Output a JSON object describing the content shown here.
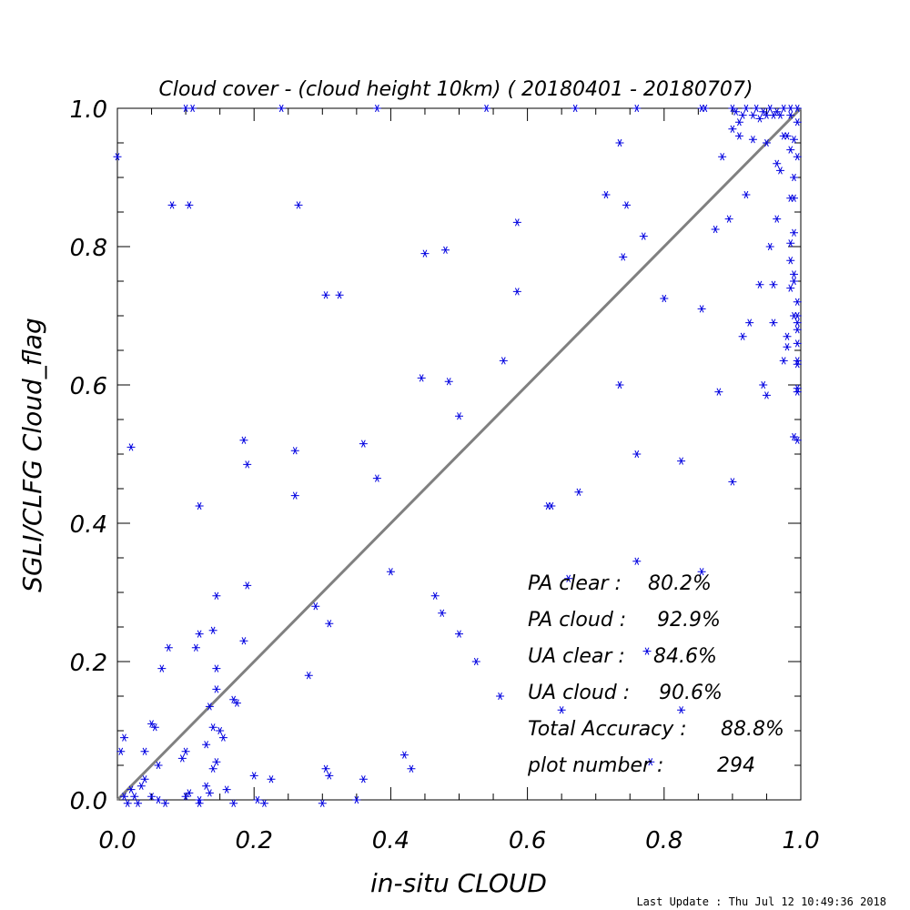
{
  "chart_data": {
    "type": "scatter",
    "title": "Cloud cover - (cloud height 10km) ( 20180401 - 20180707)",
    "xlabel": "in-situ CLOUD",
    "ylabel": "SGLI/CLFG Cloud_flag",
    "xlim": [
      0.0,
      1.0
    ],
    "ylim": [
      0.0,
      1.0
    ],
    "xticks": [
      "0.0",
      "0.2",
      "0.4",
      "0.6",
      "0.8",
      "1.0"
    ],
    "yticks": [
      "0.0",
      "0.2",
      "0.4",
      "0.6",
      "0.8",
      "1.0"
    ],
    "reference_line": "1:1",
    "marker": "asterisk",
    "point_color": "#0000e0",
    "line_color": "#808080",
    "points": [
      [
        0.0,
        0.93
      ],
      [
        0.02,
        0.51
      ],
      [
        0.08,
        0.86
      ],
      [
        0.105,
        0.86
      ],
      [
        0.265,
        0.86
      ],
      [
        0.1,
        1.0
      ],
      [
        0.11,
        1.0
      ],
      [
        0.24,
        1.0
      ],
      [
        0.38,
        1.0
      ],
      [
        0.54,
        1.0
      ],
      [
        0.67,
        1.0
      ],
      [
        0.76,
        1.0
      ],
      [
        0.305,
        0.73
      ],
      [
        0.325,
        0.73
      ],
      [
        0.45,
        0.79
      ],
      [
        0.48,
        0.795
      ],
      [
        0.585,
        0.835
      ],
      [
        0.585,
        0.735
      ],
      [
        0.565,
        0.635
      ],
      [
        0.445,
        0.61
      ],
      [
        0.485,
        0.605
      ],
      [
        0.5,
        0.555
      ],
      [
        0.185,
        0.52
      ],
      [
        0.19,
        0.485
      ],
      [
        0.26,
        0.505
      ],
      [
        0.36,
        0.515
      ],
      [
        0.38,
        0.465
      ],
      [
        0.26,
        0.44
      ],
      [
        0.12,
        0.425
      ],
      [
        0.63,
        0.425
      ],
      [
        0.635,
        0.425
      ],
      [
        0.675,
        0.445
      ],
      [
        0.715,
        0.875
      ],
      [
        0.735,
        0.95
      ],
      [
        0.745,
        0.86
      ],
      [
        0.77,
        0.815
      ],
      [
        0.74,
        0.785
      ],
      [
        0.735,
        0.6
      ],
      [
        0.76,
        0.5
      ],
      [
        0.8,
        0.725
      ],
      [
        0.825,
        0.49
      ],
      [
        0.855,
        0.71
      ],
      [
        0.875,
        0.825
      ],
      [
        0.88,
        0.59
      ],
      [
        0.885,
        0.93
      ],
      [
        0.895,
        0.84
      ],
      [
        0.9,
        0.46
      ],
      [
        0.91,
        0.98
      ],
      [
        0.915,
        0.67
      ],
      [
        0.92,
        0.875
      ],
      [
        0.925,
        0.69
      ],
      [
        0.94,
        0.745
      ],
      [
        0.945,
        0.6
      ],
      [
        0.95,
        0.585
      ],
      [
        0.955,
        0.8
      ],
      [
        0.96,
        0.69
      ],
      [
        0.96,
        0.745
      ],
      [
        0.965,
        0.92
      ],
      [
        0.965,
        0.84
      ],
      [
        0.97,
        0.91
      ],
      [
        0.975,
        0.96
      ],
      [
        0.975,
        0.635
      ],
      [
        0.98,
        0.655
      ],
      [
        0.98,
        0.67
      ],
      [
        0.985,
        0.74
      ],
      [
        0.985,
        0.87
      ],
      [
        0.99,
        0.955
      ],
      [
        0.99,
        0.82
      ],
      [
        0.99,
        0.7
      ],
      [
        0.995,
        0.635
      ],
      [
        0.995,
        0.52
      ],
      [
        0.995,
        0.59
      ],
      [
        0.995,
        0.93
      ],
      [
        0.995,
        0.98
      ],
      [
        0.985,
        0.99
      ],
      [
        0.97,
        0.99
      ],
      [
        0.96,
        0.99
      ],
      [
        0.95,
        0.99
      ],
      [
        0.94,
        0.985
      ],
      [
        0.93,
        0.99
      ],
      [
        0.99,
        0.87
      ],
      [
        0.99,
        0.9
      ],
      [
        0.995,
        0.72
      ],
      [
        0.985,
        0.78
      ],
      [
        0.99,
        0.75
      ],
      [
        0.985,
        0.805
      ],
      [
        0.995,
        0.68
      ],
      [
        0.995,
        0.63
      ],
      [
        0.99,
        0.525
      ],
      [
        0.995,
        0.595
      ],
      [
        0.995,
        0.66
      ],
      [
        0.995,
        0.7
      ],
      [
        0.995,
        0.69
      ],
      [
        0.99,
        0.76
      ],
      [
        0.98,
        0.96
      ],
      [
        0.985,
        0.94
      ],
      [
        0.9,
        1.0
      ],
      [
        0.905,
        0.995
      ],
      [
        0.915,
        0.99
      ],
      [
        0.92,
        1.0
      ],
      [
        0.86,
        1.0
      ],
      [
        0.855,
        1.0
      ],
      [
        0.935,
        1.0
      ],
      [
        0.945,
        0.995
      ],
      [
        0.955,
        1.0
      ],
      [
        0.965,
        0.995
      ],
      [
        0.975,
        1.0
      ],
      [
        0.985,
        1.0
      ],
      [
        0.995,
        1.0
      ],
      [
        0.9,
        0.97
      ],
      [
        0.91,
        0.96
      ],
      [
        0.93,
        0.955
      ],
      [
        0.95,
        0.95
      ],
      [
        0.66,
        0.32
      ],
      [
        0.76,
        0.345
      ],
      [
        0.855,
        0.33
      ],
      [
        0.775,
        0.215
      ],
      [
        0.465,
        0.295
      ],
      [
        0.475,
        0.27
      ],
      [
        0.5,
        0.24
      ],
      [
        0.525,
        0.2
      ],
      [
        0.56,
        0.15
      ],
      [
        0.65,
        0.13
      ],
      [
        0.825,
        0.13
      ],
      [
        0.78,
        0.055
      ],
      [
        0.4,
        0.33
      ],
      [
        0.43,
        0.045
      ],
      [
        0.42,
        0.065
      ],
      [
        0.305,
        0.045
      ],
      [
        0.31,
        0.035
      ],
      [
        0.3,
        -0.005
      ],
      [
        0.36,
        0.03
      ],
      [
        0.35,
        0.0
      ],
      [
        0.29,
        0.28
      ],
      [
        0.28,
        0.18
      ],
      [
        0.31,
        0.255
      ],
      [
        0.19,
        0.31
      ],
      [
        0.185,
        0.23
      ],
      [
        0.145,
        0.295
      ],
      [
        0.14,
        0.245
      ],
      [
        0.12,
        0.24
      ],
      [
        0.115,
        0.22
      ],
      [
        0.075,
        0.22
      ],
      [
        0.065,
        0.19
      ],
      [
        0.145,
        0.19
      ],
      [
        0.145,
        0.16
      ],
      [
        0.135,
        0.135
      ],
      [
        0.17,
        0.145
      ],
      [
        0.175,
        0.14
      ],
      [
        0.14,
        0.105
      ],
      [
        0.15,
        0.1
      ],
      [
        0.155,
        0.09
      ],
      [
        0.13,
        0.08
      ],
      [
        0.145,
        0.055
      ],
      [
        0.14,
        0.045
      ],
      [
        0.05,
        0.11
      ],
      [
        0.055,
        0.105
      ],
      [
        0.04,
        0.07
      ],
      [
        0.06,
        0.05
      ],
      [
        0.04,
        0.03
      ],
      [
        0.02,
        0.015
      ],
      [
        0.01,
        0.09
      ],
      [
        0.005,
        0.07
      ],
      [
        0.1,
        0.07
      ],
      [
        0.095,
        0.06
      ],
      [
        0.13,
        0.02
      ],
      [
        0.135,
        0.01
      ],
      [
        0.16,
        0.015
      ],
      [
        0.2,
        0.035
      ],
      [
        0.205,
        0.0
      ],
      [
        0.225,
        0.03
      ],
      [
        0.215,
        -0.005
      ],
      [
        0.12,
        0.0
      ],
      [
        0.12,
        -0.005
      ],
      [
        0.1,
        0.005
      ],
      [
        0.105,
        0.01
      ],
      [
        0.17,
        -0.005
      ],
      [
        0.06,
        0.0
      ],
      [
        0.03,
        -0.005
      ],
      [
        0.015,
        -0.005
      ],
      [
        0.01,
        0.005
      ],
      [
        0.05,
        0.005
      ],
      [
        0.07,
        -0.005
      ],
      [
        0.035,
        0.02
      ],
      [
        0.025,
        0.005
      ]
    ],
    "stats": [
      {
        "label": "PA clear :",
        "value": "80.2%"
      },
      {
        "label": "PA cloud :",
        "value": "92.9%"
      },
      {
        "label": "UA clear :",
        "value": "84.6%"
      },
      {
        "label": "UA cloud :",
        "value": "90.6%"
      },
      {
        "label": "Total Accuracy :",
        "value": "88.8%"
      },
      {
        "label": "plot number :",
        "value": "294"
      }
    ]
  },
  "footer": {
    "last_update": "Last Update : Thu Jul 12 10:49:36 2018"
  }
}
